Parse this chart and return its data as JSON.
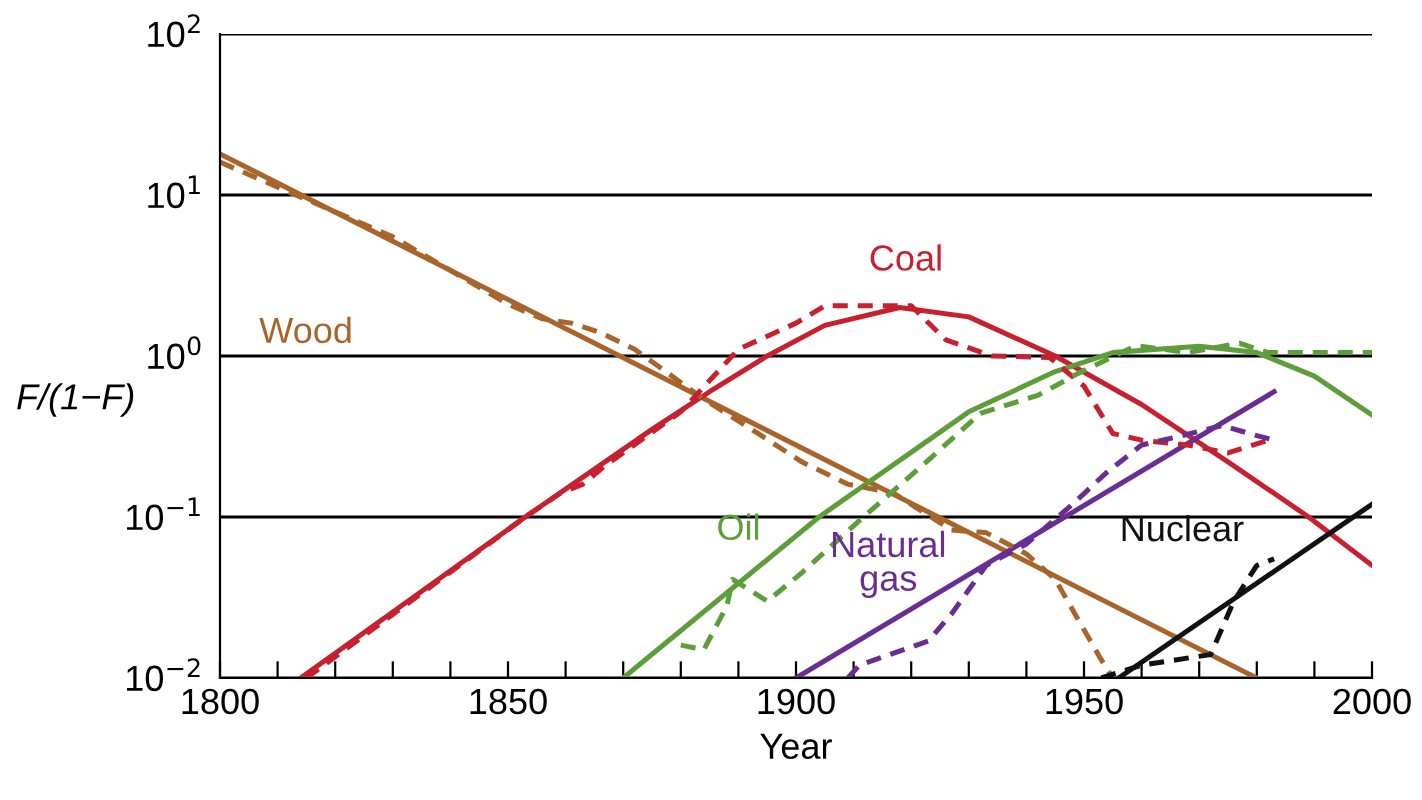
{
  "chart_data": {
    "type": "line",
    "xlabel": "Year",
    "ylabel": "F/(1−F)",
    "log": "y",
    "grid": "y",
    "marker": "none",
    "xlim": [
      1800,
      2000
    ],
    "ylim": [
      0.01,
      100
    ],
    "xticks": [
      1800,
      {
        "value": 1810,
        "label": null
      },
      {
        "value": 1820,
        "label": null
      },
      {
        "value": 1830,
        "label": null
      },
      {
        "value": 1840,
        "label": null
      },
      1850,
      {
        "value": 1860,
        "label": null
      },
      {
        "value": 1870,
        "label": null
      },
      {
        "value": 1880,
        "label": null
      },
      {
        "value": 1890,
        "label": null
      },
      1900,
      {
        "value": 1910,
        "label": null
      },
      {
        "value": 1920,
        "label": null
      },
      {
        "value": 1930,
        "label": null
      },
      {
        "value": 1940,
        "label": null
      },
      1950,
      {
        "value": 1960,
        "label": null
      },
      {
        "value": 1970,
        "label": null
      },
      {
        "value": 1980,
        "label": null
      },
      {
        "value": 1990,
        "label": null
      },
      2000
    ],
    "yticks": [
      {
        "value": 0.01,
        "label": "10$^{−2}$"
      },
      {
        "value": 0.1,
        "label": "10$^{−1}$"
      },
      {
        "value": 1,
        "label": "10$^{0}$"
      },
      {
        "value": 10,
        "label": "10$^{1}$"
      },
      {
        "value": 100,
        "label": "10$^{2}$"
      }
    ],
    "series": [
      {
        "name": "Wood",
        "color": "#a8642a",
        "line_style": "solid",
        "x": [
          1800,
          1980
        ],
        "values": [
          18,
          0.01
        ]
      },
      {
        "name": "Coal",
        "color": "#c8202f",
        "line_style": "solid",
        "x": [
          1814,
          1853,
          1875,
          1885,
          1895,
          1905,
          1918,
          1930,
          1945,
          1960,
          1975,
          1989,
          2000
        ],
        "values": [
          0.01,
          0.1,
          0.35,
          0.6,
          1.0,
          1.55,
          2.0,
          1.75,
          1.0,
          0.5,
          0.22,
          0.1,
          0.05
        ]
      },
      {
        "name": "Oil",
        "color": "#5e9e3a",
        "line_style": "solid",
        "x": [
          1870,
          1904,
          1930,
          1945,
          1955,
          1970,
          1980,
          1990,
          2000
        ],
        "values": [
          0.01,
          0.1,
          0.45,
          0.8,
          1.05,
          1.15,
          1.05,
          0.75,
          0.43
        ]
      },
      {
        "name": "Natural\ngas",
        "color": "#6a2d91",
        "line_style": "solid",
        "x": [
          1900,
          1983
        ],
        "values": [
          0.01,
          0.6
        ]
      },
      {
        "name": "Nuclear",
        "color": "#111111",
        "line_style": "solid",
        "x": [
          1956,
          2000
        ],
        "values": [
          0.01,
          0.12
        ]
      },
      {
        "color": "#a8642a",
        "line_style": "dashed",
        "x": [
          1800,
          1830,
          1850,
          1856,
          1861,
          1866,
          1872,
          1884,
          1894,
          1901,
          1909,
          1917,
          1927,
          1933,
          1940,
          1945,
          1949,
          1953,
          1955
        ],
        "values": [
          16,
          5.5,
          2.1,
          1.7,
          1.6,
          1.4,
          1.1,
          0.54,
          0.32,
          0.22,
          0.16,
          0.14,
          0.083,
          0.08,
          0.059,
          0.041,
          0.023,
          0.013,
          0.01
        ]
      },
      {
        "color": "#c8202f",
        "line_style": "dashed",
        "x": [
          1815,
          1853,
          1859,
          1863,
          1867,
          1880,
          1890,
          1900,
          1905,
          1920,
          1926,
          1934,
          1944,
          1950,
          1955,
          1960,
          1968,
          1975,
          1982
        ],
        "values": [
          0.01,
          0.1,
          0.14,
          0.16,
          0.21,
          0.45,
          1.1,
          1.6,
          2.05,
          2.05,
          1.26,
          1.0,
          0.98,
          0.65,
          0.33,
          0.3,
          0.28,
          0.25,
          0.3
        ]
      },
      {
        "color": "#5e9e3a",
        "line_style": "dashed",
        "x": [
          1880,
          1884,
          1888,
          1889,
          1891,
          1895,
          1901,
          1911,
          1922,
          1932,
          1942,
          1949,
          1959,
          1968,
          1977,
          1982,
          2000
        ],
        "values": [
          0.016,
          0.015,
          0.028,
          0.041,
          0.037,
          0.03,
          0.045,
          0.095,
          0.21,
          0.44,
          0.57,
          0.78,
          1.16,
          1.05,
          1.2,
          1.05,
          1.05
        ]
      },
      {
        "color": "#6a2d91",
        "line_style": "dashed",
        "x": [
          1909,
          1911,
          1923,
          1927,
          1933,
          1940,
          1948,
          1954,
          1960,
          1967,
          1974,
          1980,
          1983
        ],
        "values": [
          0.01,
          0.012,
          0.017,
          0.025,
          0.05,
          0.068,
          0.12,
          0.19,
          0.28,
          0.32,
          0.37,
          0.32,
          0.3
        ]
      },
      {
        "color": "#111111",
        "line_style": "dashed",
        "x": [
          1953,
          1960,
          1972,
          1976,
          1980,
          1983
        ],
        "values": [
          0.01,
          0.012,
          0.014,
          0.03,
          0.05,
          0.055
        ]
      }
    ]
  }
}
